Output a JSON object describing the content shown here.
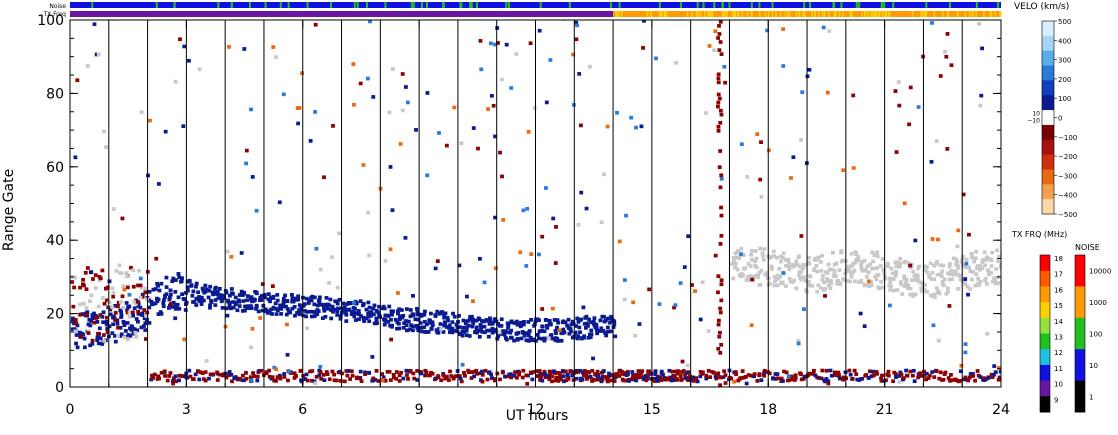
{
  "chart_data": {
    "type": "heatmap",
    "title": "",
    "xlabel": "UT hours",
    "ylabel": "Range Gate",
    "xlim": [
      0,
      24
    ],
    "ylim": [
      0,
      100
    ],
    "x_ticks": [
      "0",
      "3",
      "6",
      "9",
      "12",
      "15",
      "18",
      "21",
      "24"
    ],
    "y_ticks": [
      "0",
      "20",
      "40",
      "60",
      "80",
      "100"
    ],
    "x_minor_step": 1,
    "y_minor_step": 5,
    "scan_boundaries_hours": [
      1,
      2,
      3,
      4,
      5,
      6,
      7,
      8,
      9,
      10,
      11,
      12,
      13,
      14,
      15,
      16,
      17,
      18,
      19,
      20,
      21,
      22,
      23
    ],
    "top_bars": {
      "noise_label": "Noise",
      "txfreq_label": "TX Freq",
      "noise_color": "#1010e0",
      "noise_spike_color": "#20c020",
      "txfreq_segments": [
        {
          "start": 0,
          "end": 14.0,
          "color": "#6a16a0"
        },
        {
          "start": 14.0,
          "end": 24,
          "color": "#ff9a00"
        }
      ]
    },
    "velocity_legend": {
      "title": "VELO (km/s)",
      "ticks": [
        "500",
        "400",
        "300",
        "200",
        "100",
        "0",
        "−100",
        "−200",
        "−300",
        "−400",
        "−500"
      ],
      "tick_values": [
        500,
        400,
        300,
        200,
        100,
        0,
        -100,
        -200,
        -300,
        -400,
        -500
      ],
      "gap_labels": [
        "10",
        "−10"
      ],
      "colors_top_to_bottom": [
        "#d8eeff",
        "#a8d4f5",
        "#5aaee8",
        "#2a7ad8",
        "#1040c0",
        "#0a1a90",
        "#ffffff",
        "#780000",
        "#a81010",
        "#d03010",
        "#e86a10",
        "#f5a050",
        "#ffd8a8"
      ]
    },
    "txfreq_legend": {
      "title": "TX FRQ (MHz)",
      "ticks": [
        "18",
        "17",
        "16",
        "15",
        "14",
        "13",
        "12",
        "11",
        "10",
        "9"
      ],
      "colors_top_to_bottom": [
        "#ff0000",
        "#ff5a00",
        "#ff9a00",
        "#ffd000",
        "#98e040",
        "#20c020",
        "#20c0e0",
        "#1010e0",
        "#6a16a0",
        "#000000"
      ]
    },
    "noise_legend": {
      "title": "NOISE",
      "ticks": [
        "10000",
        "1000",
        "100",
        "10",
        "1"
      ],
      "colors_top_to_bottom": [
        "#ff0000",
        "#ff9a00",
        "#20c020",
        "#1010e0",
        "#000000"
      ]
    },
    "scatter_regions": [
      {
        "description_color": "dark-blue",
        "color": "#0a1a90",
        "points": [
          [
            0.5,
            15
          ],
          [
            1.5,
            18
          ],
          [
            2.5,
            26
          ],
          [
            3.5,
            24
          ],
          [
            4.5,
            23
          ],
          [
            5.5,
            22
          ],
          [
            6.5,
            21
          ],
          [
            7.5,
            20
          ],
          [
            8.5,
            18
          ],
          [
            9.5,
            17
          ],
          [
            10.5,
            16
          ],
          [
            11.5,
            15
          ],
          [
            12.5,
            15
          ],
          [
            13.5,
            16
          ]
        ]
      },
      {
        "description_color": "dark-red",
        "color": "#8b0000",
        "points": [
          [
            3,
            2
          ],
          [
            5,
            2
          ],
          [
            7,
            2
          ],
          [
            9,
            2
          ],
          [
            11,
            2
          ],
          [
            13,
            2
          ],
          [
            15,
            2
          ],
          [
            17,
            2
          ],
          [
            19,
            2
          ],
          [
            21,
            2
          ],
          [
            23,
            2
          ]
        ]
      },
      {
        "description_color": "gray",
        "color": "#c8c8c8",
        "points": [
          [
            17,
            33
          ],
          [
            18,
            32
          ],
          [
            19,
            30
          ],
          [
            20,
            32
          ],
          [
            21,
            31
          ],
          [
            22,
            28
          ],
          [
            23,
            31
          ],
          [
            24,
            33
          ]
        ]
      }
    ]
  }
}
